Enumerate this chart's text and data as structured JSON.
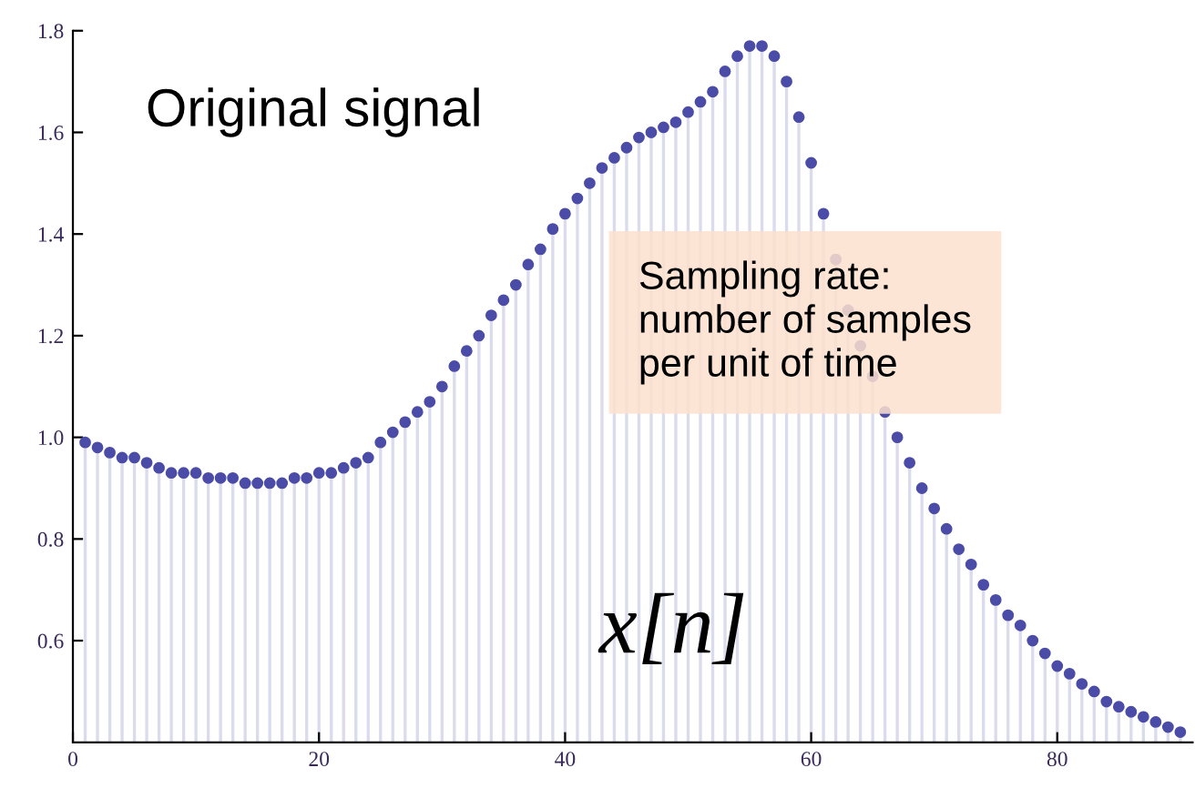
{
  "chart_data": {
    "type": "lollipop",
    "annotations": [
      "Original signal",
      "Sampling rate:\nnumber of samples\nper unit of time",
      "x[n]"
    ],
    "x": [
      1,
      2,
      3,
      4,
      5,
      6,
      7,
      8,
      9,
      10,
      11,
      12,
      13,
      14,
      15,
      16,
      17,
      18,
      19,
      20,
      21,
      22,
      23,
      24,
      25,
      26,
      27,
      28,
      29,
      30,
      31,
      32,
      33,
      34,
      35,
      36,
      37,
      38,
      39,
      40,
      41,
      42,
      43,
      44,
      45,
      46,
      47,
      48,
      49,
      50,
      51,
      52,
      53,
      54,
      55,
      56,
      57,
      58,
      59,
      60,
      61,
      62,
      63,
      64,
      65,
      66,
      67,
      68,
      69,
      70,
      71,
      72,
      73,
      74,
      75,
      76,
      77,
      78,
      79,
      80,
      81,
      82,
      83,
      84,
      85,
      86,
      87,
      88,
      89,
      90
    ],
    "series": [
      {
        "color": "#4b4ba8",
        "values": [
          0.99,
          0.98,
          0.97,
          0.96,
          0.96,
          0.95,
          0.94,
          0.93,
          0.93,
          0.93,
          0.92,
          0.92,
          0.92,
          0.91,
          0.91,
          0.91,
          0.91,
          0.92,
          0.92,
          0.93,
          0.93,
          0.94,
          0.95,
          0.96,
          0.99,
          1.01,
          1.03,
          1.05,
          1.07,
          1.1,
          1.14,
          1.17,
          1.2,
          1.24,
          1.27,
          1.3,
          1.34,
          1.37,
          1.41,
          1.44,
          1.47,
          1.5,
          1.53,
          1.55,
          1.57,
          1.59,
          1.6,
          1.61,
          1.62,
          1.64,
          1.66,
          1.68,
          1.72,
          1.75,
          1.77,
          1.77,
          1.75,
          1.7,
          1.63,
          1.54,
          1.44,
          1.35,
          1.25,
          1.18,
          1.12,
          1.05,
          1.0,
          0.95,
          0.9,
          0.86,
          0.82,
          0.78,
          0.75,
          0.71,
          0.68,
          0.65,
          0.63,
          0.6,
          0.575,
          0.55,
          0.535,
          0.515,
          0.5,
          0.48,
          0.47,
          0.46,
          0.45,
          0.44,
          0.43,
          0.42
        ]
      }
    ],
    "xlim": [
      0,
      91
    ],
    "ylim": [
      0.4,
      1.8
    ],
    "xticks": [
      0,
      20,
      40,
      60,
      80
    ],
    "yticks": [
      0.6,
      0.8,
      {
        "value": 1,
        "label": "1.0"
      },
      1.2,
      1.4,
      1.6,
      1.8
    ],
    "marker": "circle",
    "legend": false
  }
}
